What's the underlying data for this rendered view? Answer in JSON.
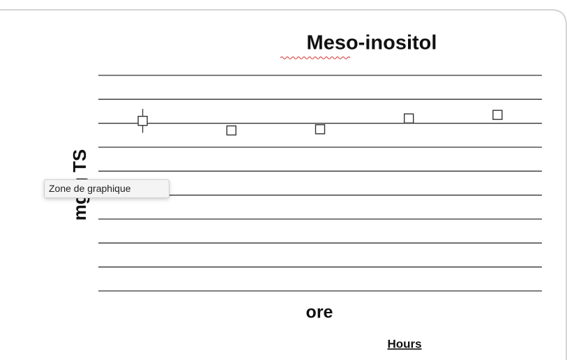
{
  "chart_data": {
    "type": "scatter",
    "title": "Meso-inositol",
    "y_label": "mg/g TS",
    "x_label": "ore",
    "x_label_2": "Hours",
    "categories": [
      null,
      null,
      null,
      null,
      null
    ],
    "values": [
      7.1,
      6.7,
      6.75,
      7.2,
      7.35
    ],
    "errors": [
      0.5,
      null,
      null,
      null,
      null
    ],
    "color": "#333333",
    "ylim": [
      0,
      9
    ],
    "yticks": [
      0,
      1,
      2,
      3,
      4,
      5,
      6,
      7,
      8,
      9
    ],
    "grid": true
  },
  "tooltip": "Zone de graphique"
}
